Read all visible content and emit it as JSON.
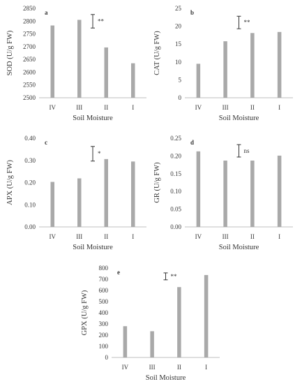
{
  "chart_data": [
    {
      "type": "bar",
      "panel": "a",
      "categories": [
        "IV",
        "III",
        "II",
        "I"
      ],
      "values": [
        2783,
        2805,
        2697,
        2635
      ],
      "xlabel": "Soil Moisture",
      "ylabel": "SOD (U/g FW)",
      "ylim": [
        2500,
        2850
      ],
      "yticks": [
        "2500",
        "2550",
        "2600",
        "2650",
        "2700",
        "2750",
        "2800",
        "2850"
      ],
      "significance": "**",
      "error_bar": [
        2773,
        2826
      ],
      "bar_color": "#a9a9a9"
    },
    {
      "type": "bar",
      "panel": "b",
      "categories": [
        "IV",
        "III",
        "II",
        "I"
      ],
      "values": [
        9.5,
        15.8,
        18.1,
        18.4
      ],
      "xlabel": "Soil Moisture",
      "ylabel": "CAT (U/g FW)",
      "ylim": [
        0,
        25
      ],
      "yticks": [
        "0",
        "5",
        "10",
        "15",
        "20",
        "25"
      ],
      "significance": "**",
      "error_bar": [
        19.3,
        22.8
      ],
      "bar_color": "#a9a9a9"
    },
    {
      "type": "bar",
      "panel": "c",
      "categories": [
        "IV",
        "III",
        "II",
        "I"
      ],
      "values": [
        0.203,
        0.219,
        0.306,
        0.295
      ],
      "xlabel": "Soil Moisture",
      "ylabel": "APX (U/g FW)",
      "ylim": [
        0,
        0.4
      ],
      "yticks": [
        "0.00",
        "0.10",
        "0.20",
        "0.30",
        "0.40"
      ],
      "significance": "*",
      "error_bar": [
        0.297,
        0.363
      ],
      "bar_color": "#a9a9a9"
    },
    {
      "type": "bar",
      "panel": "d",
      "categories": [
        "IV",
        "III",
        "II",
        "I"
      ],
      "values": [
        0.213,
        0.187,
        0.187,
        0.201
      ],
      "xlabel": "Soil Moisture",
      "ylabel": "GR (U/g FW)",
      "ylim": [
        0,
        0.25
      ],
      "yticks": [
        "0.00",
        "0.05",
        "0.10",
        "0.15",
        "0.20",
        "0.25"
      ],
      "significance": "ns",
      "error_bar": [
        0.197,
        0.232
      ],
      "bar_color": "#a9a9a9"
    },
    {
      "type": "bar",
      "panel": "e",
      "categories": [
        "IV",
        "III",
        "II",
        "I"
      ],
      "values": [
        280,
        235,
        630,
        738
      ],
      "xlabel": "Soil Moisture",
      "ylabel": "GPX (U/g FW)",
      "ylim": [
        0,
        800
      ],
      "yticks": [
        "0",
        "100",
        "200",
        "300",
        "400",
        "500",
        "600",
        "700",
        "800"
      ],
      "significance": "**",
      "error_bar": [
        695,
        757
      ],
      "bar_color": "#a9a9a9"
    }
  ]
}
